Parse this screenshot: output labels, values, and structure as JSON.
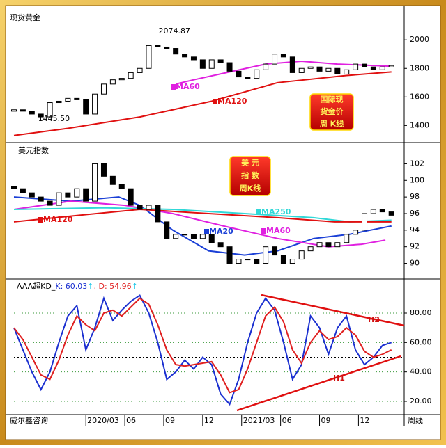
{
  "chart_data": [
    {
      "type": "candlestick",
      "title": "现货黄金",
      "xlim": [
        0,
        127
      ],
      "ylim": [
        1280,
        2230
      ],
      "yticks": [
        1400,
        1600,
        1800,
        2000
      ],
      "x": [
        0,
        3,
        6,
        9,
        12,
        15,
        18,
        21,
        24,
        27,
        30,
        33,
        36,
        39,
        42,
        45,
        48,
        51,
        54,
        57,
        60,
        63,
        66,
        69,
        72,
        75,
        78,
        81,
        84,
        87,
        90,
        93,
        96,
        99,
        102,
        105,
        108,
        111,
        114,
        117,
        120,
        123,
        126
      ],
      "open": [
        1500,
        1510,
        1500,
        1480,
        1460,
        1560,
        1570,
        1590,
        1580,
        1480,
        1620,
        1690,
        1720,
        1730,
        1770,
        1800,
        1960,
        1950,
        1940,
        1900,
        1880,
        1860,
        1800,
        1860,
        1840,
        1780,
        1740,
        1730,
        1790,
        1830,
        1900,
        1880,
        1770,
        1800,
        1810,
        1780,
        1800,
        1760,
        1790,
        1830,
        1810,
        1790,
        1810
      ],
      "close": [
        1510,
        1500,
        1480,
        1460,
        1560,
        1570,
        1590,
        1580,
        1480,
        1620,
        1690,
        1720,
        1730,
        1770,
        1800,
        1960,
        1950,
        1940,
        1900,
        1880,
        1860,
        1800,
        1860,
        1840,
        1780,
        1740,
        1730,
        1790,
        1830,
        1900,
        1880,
        1770,
        1800,
        1810,
        1780,
        1800,
        1760,
        1790,
        1830,
        1810,
        1790,
        1810,
        1820
      ],
      "series": [
        {
          "name": "MA60",
          "color": "#e020e0",
          "x": [
            54,
            60,
            72,
            84,
            96,
            108,
            126
          ],
          "values": [
            1690,
            1720,
            1775,
            1830,
            1850,
            1830,
            1815
          ]
        },
        {
          "name": "MA120",
          "color": "#e01010",
          "x": [
            0,
            18,
            42,
            66,
            88,
            111,
            126
          ],
          "values": [
            1330,
            1380,
            1460,
            1570,
            1700,
            1750,
            1775
          ]
        }
      ],
      "max_label": "2074.87",
      "min_label": "1445.50",
      "badge": [
        "国际现",
        "货金价",
        "周 K线"
      ]
    },
    {
      "type": "candlestick",
      "title": "美元指数",
      "xlim": [
        0,
        127
      ],
      "ylim": [
        88.2,
        104.3
      ],
      "yticks": [
        90,
        92,
        94,
        96,
        98,
        100,
        102
      ],
      "x": [
        0,
        3,
        6,
        9,
        12,
        15,
        18,
        21,
        24,
        27,
        30,
        33,
        36,
        39,
        42,
        45,
        48,
        51,
        54,
        57,
        60,
        63,
        66,
        69,
        72,
        75,
        78,
        81,
        84,
        87,
        90,
        93,
        96,
        99,
        102,
        105,
        108,
        111,
        114,
        117,
        120,
        123,
        126
      ],
      "open": [
        99.3,
        99,
        98.5,
        98,
        97.5,
        97,
        98.5,
        98,
        99,
        97.5,
        102,
        100.5,
        99.5,
        99,
        97,
        96.5,
        97,
        95,
        93,
        93.5,
        93.5,
        93,
        93.5,
        92.5,
        92,
        90,
        90.5,
        90.5,
        90,
        92,
        91,
        90,
        90.5,
        91.5,
        92,
        92.5,
        92,
        92.5,
        93.5,
        94,
        96,
        96.5,
        96.2
      ],
      "close": [
        99,
        98.5,
        98,
        97.5,
        97,
        98.5,
        98,
        99,
        97.5,
        102,
        100.5,
        99.5,
        99,
        97,
        96.5,
        97,
        95,
        93,
        93.5,
        93.5,
        93,
        93.5,
        92.5,
        92,
        90,
        90.5,
        90.5,
        90,
        92,
        91,
        90,
        90.5,
        91.5,
        92,
        92.5,
        92,
        92.5,
        93.5,
        94,
        96,
        96.5,
        96.2,
        95.8
      ],
      "series": [
        {
          "name": "MA20",
          "color": "#1a3fd6",
          "x": [
            0,
            19,
            35,
            42,
            53,
            65,
            77,
            88,
            100,
            112,
            119,
            126
          ],
          "values": [
            98,
            97.5,
            98,
            97,
            94,
            91.5,
            91,
            91.5,
            93,
            93.5,
            94,
            94.5
          ]
        },
        {
          "name": "MA60",
          "color": "#e020e0",
          "x": [
            0,
            19,
            37,
            53,
            70,
            88,
            105,
            116,
            124
          ],
          "values": [
            96.5,
            97.5,
            97,
            96,
            94.5,
            93,
            92,
            92.3,
            92.8
          ]
        },
        {
          "name": "MA250",
          "color": "#30d8d8",
          "x": [
            0,
            30,
            53,
            77,
            100,
            112,
            126
          ],
          "values": [
            96.5,
            96.7,
            96.5,
            96,
            95.5,
            95,
            95.2
          ]
        },
        {
          "name": "MA120",
          "color": "#e01010",
          "x": [
            0,
            19,
            42,
            65,
            88,
            107,
            126
          ],
          "values": [
            95,
            95.7,
            96.5,
            96,
            95.5,
            95,
            95
          ]
        }
      ],
      "badge": [
        "美 元",
        "指 数",
        "周K线"
      ]
    },
    {
      "type": "line",
      "title": "AAA超KD_",
      "k_label": "K: 60.03",
      "d_label": ", D: 54.96",
      "arrow": "↑",
      "xlim": [
        0,
        127
      ],
      "ylim": [
        11.5,
        102.2
      ],
      "yticks": [
        {
          "value": 20,
          "label": "20.00"
        },
        {
          "value": 40,
          "label": "40.00"
        },
        {
          "value": 60,
          "label": "60.00"
        },
        {
          "value": 80,
          "label": "80.00"
        }
      ],
      "reference_line": 50,
      "grid": true,
      "x": [
        0,
        3,
        6,
        9,
        12,
        15,
        18,
        21,
        24,
        27,
        30,
        33,
        36,
        39,
        42,
        45,
        48,
        51,
        54,
        57,
        60,
        63,
        66,
        69,
        72,
        75,
        78,
        81,
        84,
        87,
        90,
        93,
        96,
        99,
        102,
        105,
        108,
        111,
        114,
        117,
        120,
        123,
        126
      ],
      "series": [
        {
          "name": "K",
          "color": "#1a2fd0",
          "values": [
            70,
            55,
            40,
            28,
            40,
            60,
            78,
            85,
            55,
            70,
            90,
            75,
            82,
            88,
            92,
            80,
            60,
            35,
            40,
            48,
            42,
            50,
            45,
            25,
            18,
            35,
            60,
            80,
            90,
            82,
            60,
            35,
            45,
            78,
            70,
            52,
            70,
            78,
            55,
            45,
            50,
            58,
            60
          ]
        },
        {
          "name": "D",
          "color": "#e02020",
          "values": [
            70,
            62,
            50,
            38,
            35,
            48,
            65,
            78,
            72,
            68,
            80,
            82,
            78,
            84,
            90,
            86,
            72,
            55,
            45,
            44,
            45,
            46,
            47,
            38,
            26,
            28,
            42,
            60,
            78,
            84,
            74,
            55,
            46,
            60,
            68,
            62,
            64,
            70,
            65,
            54,
            50,
            52,
            55
          ]
        }
      ],
      "trend_labels": [
        "H2",
        "H1"
      ],
      "xticks": [
        {
          "value": 24,
          "label": "2020/03"
        },
        {
          "value": 37,
          "label": "06"
        },
        {
          "value": 50,
          "label": "09"
        },
        {
          "value": 63,
          "label": "12"
        },
        {
          "value": 76,
          "label": "2021/03"
        },
        {
          "value": 89,
          "label": "06"
        },
        {
          "value": 102,
          "label": "09"
        },
        {
          "value": 115,
          "label": "12"
        }
      ]
    }
  ],
  "footer": {
    "source": "威尔鑫咨询",
    "period": "周线"
  }
}
